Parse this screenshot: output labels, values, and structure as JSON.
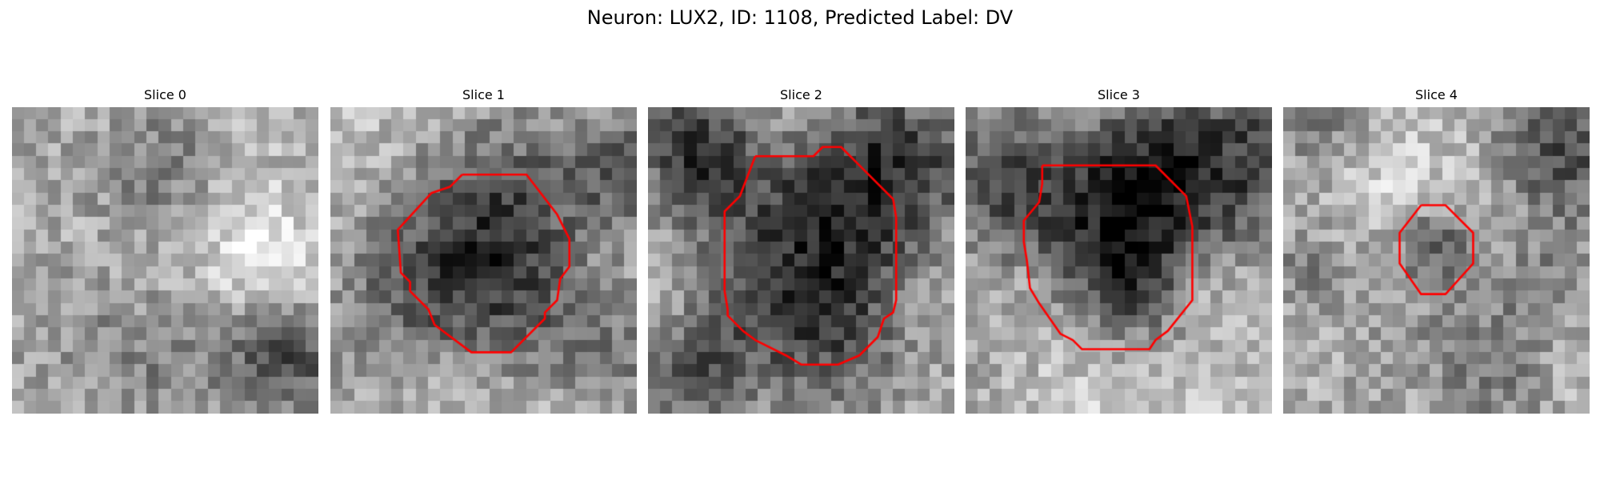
{
  "figure": {
    "title": "Neuron: LUX2, ID: 1108, Predicted Label: DV"
  },
  "panels": [
    {
      "title": "Slice 0",
      "contour": false,
      "seed": 11,
      "mean": 180,
      "blobs": [
        [
          0.45,
          0.22,
          0.18,
          -45
        ],
        [
          0.26,
          0.62,
          0.16,
          -30
        ],
        [
          0.9,
          0.8,
          0.12,
          -95
        ],
        [
          0.8,
          0.47,
          0.2,
          35
        ],
        [
          0.34,
          0.9,
          0.14,
          -35
        ],
        [
          0.73,
          0.9,
          0.16,
          -40
        ]
      ]
    },
    {
      "title": "Slice 1",
      "contour": true,
      "seed": 29,
      "mean": 176,
      "blobs": [
        [
          0.5,
          0.48,
          0.24,
          -135
        ],
        [
          0.28,
          0.58,
          0.13,
          -35
        ],
        [
          0.95,
          0.2,
          0.14,
          -80
        ],
        [
          0.9,
          0.8,
          0.15,
          -45
        ],
        [
          0.08,
          0.15,
          0.14,
          40
        ],
        [
          0.55,
          0.93,
          0.18,
          25
        ]
      ]
    },
    {
      "title": "Slice 2",
      "contour": true,
      "seed": 47,
      "mean": 174,
      "blobs": [
        [
          0.52,
          0.5,
          0.3,
          -145
        ],
        [
          0.15,
          0.12,
          0.12,
          -85
        ],
        [
          0.85,
          0.15,
          0.17,
          -80
        ],
        [
          0.55,
          0.05,
          0.12,
          25
        ],
        [
          0.05,
          0.6,
          0.14,
          45
        ],
        [
          0.88,
          0.68,
          0.14,
          30
        ],
        [
          0.15,
          0.88,
          0.12,
          -55
        ]
      ]
    },
    {
      "title": "Slice 3",
      "contour": true,
      "seed": 73,
      "mean": 178,
      "blobs": [
        [
          0.49,
          0.38,
          0.25,
          -150
        ],
        [
          0.5,
          0.62,
          0.12,
          -50
        ],
        [
          0.9,
          0.12,
          0.22,
          -95
        ],
        [
          0.05,
          0.2,
          0.18,
          -55
        ],
        [
          0.5,
          0.88,
          0.22,
          45
        ],
        [
          0.2,
          0.62,
          0.14,
          25
        ],
        [
          0.8,
          0.62,
          0.12,
          25
        ]
      ]
    },
    {
      "title": "Slice 4",
      "contour": true,
      "seed": 97,
      "mean": 178,
      "blobs": [
        [
          0.5,
          0.45,
          0.1,
          -80
        ],
        [
          0.92,
          0.15,
          0.16,
          -120
        ],
        [
          0.1,
          0.1,
          0.12,
          -50
        ],
        [
          0.08,
          0.55,
          0.11,
          -40
        ],
        [
          0.88,
          0.6,
          0.12,
          -55
        ],
        [
          0.45,
          0.75,
          0.14,
          -40
        ],
        [
          0.25,
          0.3,
          0.12,
          35
        ],
        [
          0.65,
          0.3,
          0.14,
          30
        ],
        [
          0.7,
          0.85,
          0.13,
          -45
        ]
      ]
    }
  ]
}
